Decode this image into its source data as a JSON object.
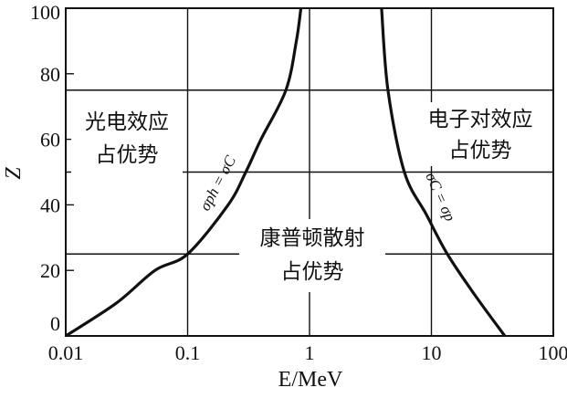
{
  "chart_data": {
    "type": "line",
    "xlabel": "E/MeV",
    "ylabel": "Z",
    "xscale": "log",
    "xlim": [
      0.01,
      100
    ],
    "ylim": [
      0,
      100
    ],
    "x_ticks": [
      "0.01",
      "0.1",
      "1",
      "10",
      "100"
    ],
    "y_ticks": [
      "0",
      "20",
      "40",
      "60",
      "80",
      "100"
    ],
    "grid": {
      "x": [
        0.1,
        1,
        10
      ],
      "y": [
        25,
        50,
        75
      ]
    },
    "series": [
      {
        "name": "σph = σC",
        "x": [
          0.01,
          0.026,
          0.054,
          0.1,
          0.215,
          0.3,
          0.4,
          0.64,
          0.78,
          0.85
        ],
        "y": [
          0,
          10,
          20,
          25,
          40,
          50,
          60,
          75,
          90,
          100
        ]
      },
      {
        "name": "σC = σp",
        "x": [
          3.9,
          4.4,
          6.0,
          9.1,
          13.5,
          22.7,
          40
        ],
        "y": [
          100,
          75,
          50,
          37,
          25,
          12.5,
          0
        ]
      }
    ],
    "annotations": [
      {
        "lines": [
          "光电效应",
          "占优势"
        ]
      },
      {
        "lines": [
          "康普顿散射",
          "占优势"
        ]
      },
      {
        "lines": [
          "电子对效应",
          "占优势"
        ]
      }
    ],
    "line_color": "#111111"
  }
}
